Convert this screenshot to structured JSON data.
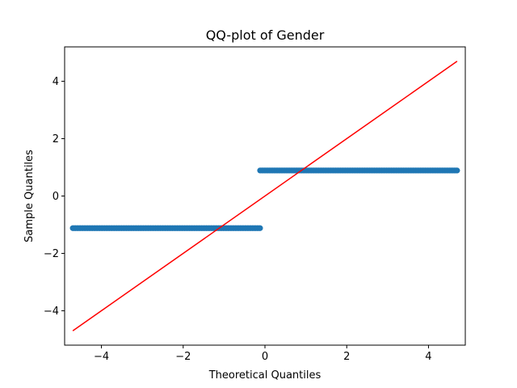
{
  "chart_data": {
    "type": "scatter",
    "title": "QQ-plot of Gender",
    "xlabel": "Theoretical Quantiles",
    "ylabel": "Sample Quantiles",
    "xlim": [
      -4.9,
      4.9
    ],
    "ylim": [
      -5.2,
      5.2
    ],
    "xticks": [
      -4,
      -2,
      0,
      2,
      4
    ],
    "yticks": [
      -4,
      -2,
      0,
      2,
      4
    ],
    "xtick_labels": [
      "−4",
      "−2",
      "0",
      "2",
      "4"
    ],
    "ytick_labels": [
      "−4",
      "−2",
      "0",
      "2",
      "4"
    ],
    "grid": false,
    "series": [
      {
        "kind": "points",
        "color": "#1f77b4",
        "segments": [
          {
            "x_start": -4.7,
            "x_end": -0.12,
            "y": -1.12
          },
          {
            "x_start": -0.12,
            "x_end": 4.7,
            "y": 0.89
          }
        ]
      },
      {
        "kind": "line",
        "color": "#ff0000",
        "x": [
          -4.7,
          4.7
        ],
        "y": [
          -4.7,
          4.7
        ]
      }
    ]
  }
}
